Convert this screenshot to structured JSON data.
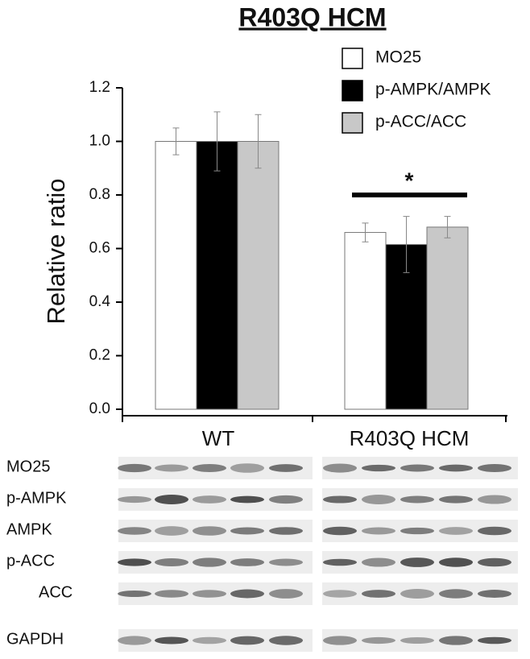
{
  "chart_data": {
    "type": "bar",
    "title": "R403Q HCM",
    "y_label": "Relative ratio",
    "categories": [
      "WT",
      "R403Q HCM"
    ],
    "series": [
      {
        "name": "MO25",
        "color": "#ffffff",
        "values": [
          1.0,
          0.66
        ],
        "errors": [
          0.05,
          0.035
        ]
      },
      {
        "name": "p-AMPK/AMPK",
        "color": "#000000",
        "values": [
          1.0,
          0.615
        ],
        "errors": [
          0.11,
          0.105
        ]
      },
      {
        "name": "p-ACC/ACC",
        "color": "#c8c8c8",
        "values": [
          1.0,
          0.68
        ],
        "errors": [
          0.1,
          0.04
        ]
      }
    ],
    "ylim": [
      0,
      1.2
    ],
    "yticks": [
      {
        "value": 0,
        "label": "0.0"
      },
      0.2,
      0.4,
      0.6,
      0.8,
      {
        "value": 1,
        "label": "1.0"
      },
      {
        "value": 1.2,
        "label": "1.2"
      }
    ],
    "annotation": "*"
  },
  "blot_labels": [
    "MO25",
    "p-AMPK",
    "AMPK",
    "p-ACC",
    "ACC",
    "GAPDH"
  ]
}
